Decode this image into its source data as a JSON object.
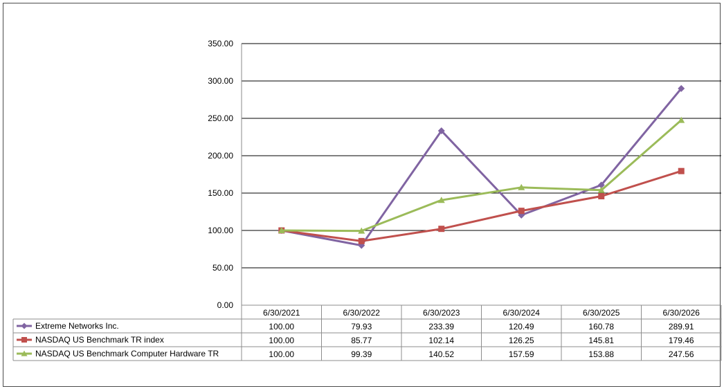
{
  "chart_data": {
    "type": "line",
    "title": "",
    "xlabel": "",
    "ylabel": "",
    "ylim": [
      0,
      350
    ],
    "y_tick_labels": [
      "0.00",
      "50.00",
      "100.00",
      "150.00",
      "200.00",
      "250.00",
      "300.00",
      "350.00"
    ],
    "y_ticks": [
      0,
      50,
      100,
      150,
      200,
      250,
      300,
      350
    ],
    "grid": true,
    "legend": "data-table-below",
    "categories": [
      "6/30/2021",
      "6/30/2022",
      "6/30/2023",
      "6/30/2024",
      "6/30/2025",
      "6/30/2026"
    ],
    "series": [
      {
        "name": "Extreme Networks Inc.",
        "marker": "diamond",
        "color": "#8064a2",
        "values": [
          100.0,
          79.93,
          233.39,
          120.49,
          160.78,
          289.91
        ],
        "labels": [
          "100.00",
          "79.93",
          "233.39",
          "120.49",
          "160.78",
          "289.91"
        ]
      },
      {
        "name": "NASDAQ US Benchmark TR index",
        "marker": "square",
        "color": "#c0504d",
        "values": [
          100.0,
          85.77,
          102.14,
          126.25,
          145.81,
          179.46
        ],
        "labels": [
          "100.00",
          "85.77",
          "102.14",
          "126.25",
          "145.81",
          "179.46"
        ]
      },
      {
        "name": "NASDAQ US Benchmark Computer Hardware TR",
        "marker": "triangle",
        "color": "#9bbb59",
        "values": [
          100.0,
          99.39,
          140.52,
          157.59,
          153.88,
          247.56
        ],
        "labels": [
          "100.00",
          "99.39",
          "140.52",
          "157.59",
          "153.88",
          "247.56"
        ]
      }
    ]
  }
}
